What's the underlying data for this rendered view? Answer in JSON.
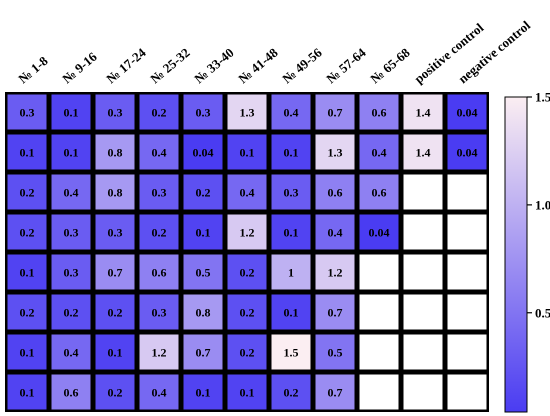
{
  "chart_data": {
    "type": "heatmap",
    "columns": [
      "№ 1-8",
      "№ 9-16",
      "№ 17-24",
      "№ 25-32",
      "№ 33-40",
      "№ 41-48",
      "№ 49-56",
      "№ 57-64",
      "№ 65-68",
      "positive control",
      "negative control"
    ],
    "values": [
      [
        0.3,
        0.1,
        0.3,
        0.2,
        0.3,
        1.3,
        0.4,
        0.7,
        0.6,
        1.4,
        0.04
      ],
      [
        0.1,
        0.1,
        0.8,
        0.4,
        0.04,
        0.1,
        0.1,
        1.3,
        0.4,
        1.4,
        0.04
      ],
      [
        0.2,
        0.4,
        0.8,
        0.3,
        0.2,
        0.4,
        0.3,
        0.6,
        0.6,
        null,
        null
      ],
      [
        0.2,
        0.3,
        0.3,
        0.2,
        0.1,
        1.2,
        0.1,
        0.4,
        0.04,
        null,
        null
      ],
      [
        0.1,
        0.3,
        0.7,
        0.6,
        0.5,
        0.2,
        1.0,
        1.2,
        null,
        null,
        null
      ],
      [
        0.2,
        0.2,
        0.2,
        0.3,
        0.8,
        0.2,
        0.1,
        0.7,
        null,
        null,
        null
      ],
      [
        0.1,
        0.4,
        0.1,
        1.2,
        0.7,
        0.2,
        1.5,
        0.5,
        null,
        null,
        null
      ],
      [
        0.1,
        0.6,
        0.2,
        0.4,
        0.1,
        0.1,
        0.2,
        0.7,
        null,
        null,
        null
      ]
    ],
    "colorbar": {
      "range": [
        0.04,
        1.5
      ],
      "ticks": [
        0.5,
        1.0,
        1.5
      ],
      "tick_labels": [
        "0.5",
        "1.0",
        "1.5"
      ],
      "low_color": "#4a3cf2",
      "high_color": "#fbeef2"
    },
    "empty_cell_color": "#ffffff"
  }
}
